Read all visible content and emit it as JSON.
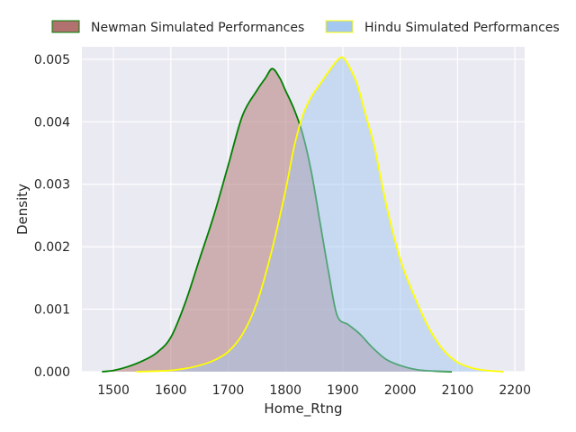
{
  "chart_data": {
    "type": "area",
    "title": "",
    "xlabel": "Home_Rtng",
    "ylabel": "Density",
    "xlim": [
      1445,
      2217
    ],
    "ylim": [
      0,
      0.0052
    ],
    "x_ticks": [
      1500,
      1600,
      1700,
      1800,
      1900,
      2000,
      2100,
      2200
    ],
    "x_tick_labels": [
      "1500",
      "1600",
      "1700",
      "1800",
      "1900",
      "2000",
      "2100",
      "2200"
    ],
    "y_ticks": [
      0,
      0.001,
      0.002,
      0.003,
      0.004,
      0.005
    ],
    "y_tick_labels": [
      "0.000",
      "0.001",
      "0.002",
      "0.003",
      "0.004",
      "0.005"
    ],
    "grid": true,
    "background_color": "#eaeaf2",
    "legend_placement": "top",
    "series": [
      {
        "name": "Newman Simulated Performances",
        "fill_color": "#b0716f",
        "line_color": "#008000",
        "x": [
          1480,
          1500,
          1525,
          1550,
          1575,
          1600,
          1625,
          1650,
          1675,
          1700,
          1725,
          1750,
          1765,
          1777,
          1790,
          1800,
          1815,
          1830,
          1845,
          1860,
          1875,
          1890,
          1910,
          1930,
          1950,
          1975,
          2000,
          2030,
          2060,
          2090
        ],
        "values": [
          0,
          2e-05,
          8e-05,
          0.00017,
          0.0003,
          0.00055,
          0.0011,
          0.0018,
          0.0025,
          0.0033,
          0.0041,
          0.0045,
          0.0047,
          0.00485,
          0.0047,
          0.0045,
          0.0042,
          0.0038,
          0.0032,
          0.0024,
          0.0016,
          0.0009,
          0.00075,
          0.0006,
          0.0004,
          0.0002,
          0.0001,
          3e-05,
          1e-05,
          0
        ]
      },
      {
        "name": "Hindu Simulated Performances",
        "fill_color": "#a4c8f0",
        "line_color": "#ffff00",
        "x": [
          1540,
          1575,
          1600,
          1625,
          1650,
          1675,
          1700,
          1725,
          1750,
          1775,
          1800,
          1815,
          1830,
          1845,
          1860,
          1875,
          1890,
          1900,
          1910,
          1925,
          1940,
          1955,
          1975,
          2000,
          2025,
          2050,
          2075,
          2100,
          2125,
          2150,
          2180
        ],
        "values": [
          0,
          1e-05,
          2e-05,
          5e-05,
          0.0001,
          0.00018,
          0.00032,
          0.0006,
          0.0011,
          0.0019,
          0.0029,
          0.0036,
          0.0041,
          0.0044,
          0.0046,
          0.0048,
          0.00498,
          0.00503,
          0.0049,
          0.0046,
          0.0041,
          0.0036,
          0.0027,
          0.0018,
          0.0012,
          0.0007,
          0.00035,
          0.00015,
          6e-05,
          2e-05,
          0
        ]
      }
    ]
  }
}
